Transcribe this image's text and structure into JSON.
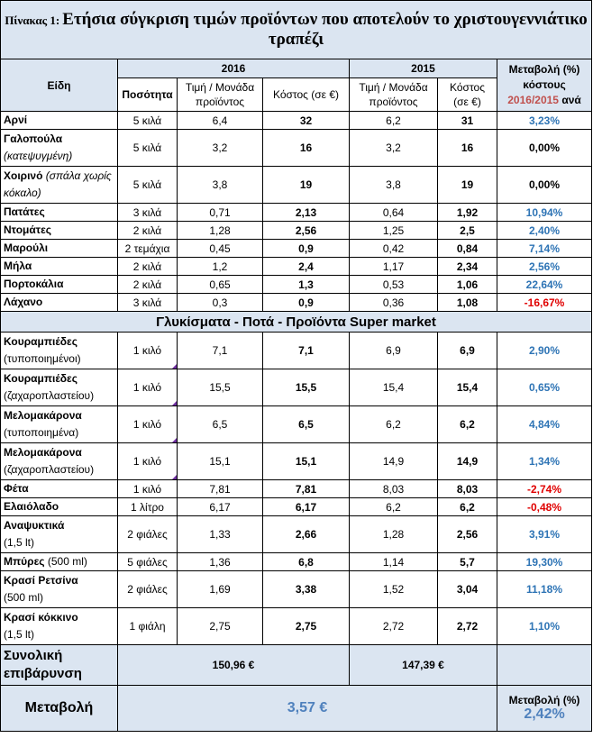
{
  "title": {
    "prefix": "Πίνακας 1:",
    "main": "Ετήσια σύγκριση τιμών προϊόντων που αποτελούν το χριστουγεννιάτικο τραπέζι"
  },
  "headers": {
    "items": "Είδη",
    "year_2016": "2016",
    "year_2015": "2015",
    "change_line1": "Μεταβολή (%)",
    "change_line2": "κόστους",
    "change_line3_years": "2016/2015",
    "change_line3_suffix": "ανά",
    "quantity": "Ποσότητα",
    "unit_price": "Τιμή / Μονάδα προϊόντος",
    "cost": "Κόστος (σε €)",
    "unit_price_2015": "Τιμή / Μονάδα προϊόντος",
    "cost_2015": "Κόστος (σε €)"
  },
  "group1": [
    {
      "name": "Αρνί",
      "sub": "",
      "qty": "5 κιλά",
      "p16": "6,4",
      "c16": "32",
      "p15": "6,2",
      "c15": "31",
      "chg": "3,23%",
      "sign": "pos"
    },
    {
      "name": "Γαλοπούλα",
      "sub": "(κατεψυγμένη)",
      "qty": "5 κιλά",
      "p16": "3,2",
      "c16": "16",
      "p15": "3,2",
      "c15": "16",
      "chg": "0,00%",
      "sign": "zero"
    },
    {
      "name": "Χοιρινό",
      "sub": "(σπάλα χωρίς κόκαλο)",
      "qty": "5 κιλά",
      "p16": "3,8",
      "c16": "19",
      "p15": "3,8",
      "c15": "19",
      "chg": "0,00%",
      "sign": "zero"
    },
    {
      "name": "Πατάτες",
      "sub": "",
      "qty": "3 κιλά",
      "p16": "0,71",
      "c16": "2,13",
      "p15": "0,64",
      "c15": "1,92",
      "chg": "10,94%",
      "sign": "pos"
    },
    {
      "name": "Ντομάτες",
      "sub": "",
      "qty": "2 κιλά",
      "p16": "1,28",
      "c16": "2,56",
      "p15": "1,25",
      "c15": "2,5",
      "chg": "2,40%",
      "sign": "pos"
    },
    {
      "name": "Μαρούλι",
      "sub": "",
      "qty": "2 τεμάχια",
      "p16": "0,45",
      "c16": "0,9",
      "p15": "0,42",
      "c15": "0,84",
      "chg": "7,14%",
      "sign": "pos"
    },
    {
      "name": "Μήλα",
      "sub": "",
      "qty": "2 κιλά",
      "p16": "1,2",
      "c16": "2,4",
      "p15": "1,17",
      "c15": "2,34",
      "chg": "2,56%",
      "sign": "pos"
    },
    {
      "name": "Πορτοκάλια",
      "sub": "",
      "qty": "2 κιλά",
      "p16": "0,65",
      "c16": "1,3",
      "p15": "0,53",
      "c15": "1,06",
      "chg": "22,64%",
      "sign": "pos"
    },
    {
      "name": "Λάχανο",
      "sub": "",
      "qty": "3 κιλά",
      "p16": "0,3",
      "c16": "0,9",
      "p15": "0,36",
      "c15": "1,08",
      "chg": "-16,67%",
      "sign": "neg"
    }
  ],
  "section2_title": "Γλυκίσματα - Ποτά - Προϊόντα Super market",
  "group2": [
    {
      "name": "Κουραμπιέδες",
      "note": "(τυποποιημένοι)",
      "qty": "1 κιλό",
      "p16": "7,1",
      "c16": "7,1",
      "p15": "6,9",
      "c15": "6,9",
      "chg": "2,90%",
      "sign": "pos",
      "tall": true
    },
    {
      "name": "Κουραμπιέδες",
      "note": "(ζαχαροπλαστείου)",
      "qty": "1 κιλό",
      "p16": "15,5",
      "c16": "15,5",
      "p15": "15,4",
      "c15": "15,4",
      "chg": "0,65%",
      "sign": "pos",
      "tall": true
    },
    {
      "name": "Μελομακάρονα",
      "note": "(τυποποιημένα)",
      "qty": "1 κιλό",
      "p16": "6,5",
      "c16": "6,5",
      "p15": "6,2",
      "c15": "6,2",
      "chg": "4,84%",
      "sign": "pos",
      "tall": true
    },
    {
      "name": "Μελομακάρονα",
      "note": "(ζαχαροπλαστείου)",
      "qty": "1 κιλό",
      "p16": "15,1",
      "c16": "15,1",
      "p15": "14,9",
      "c15": "14,9",
      "chg": "1,34%",
      "sign": "pos",
      "tall": true
    },
    {
      "name": "Φέτα",
      "note": "",
      "qty": "1 κιλό",
      "p16": "7,81",
      "c16": "7,81",
      "p15": "8,03",
      "c15": "8,03",
      "chg": "-2,74%",
      "sign": "neg",
      "tall": false
    },
    {
      "name": "Ελαιόλαδο",
      "note": "",
      "qty": "1 λίτρο",
      "p16": "6,17",
      "c16": "6,17",
      "p15": "6,2",
      "c15": "6,2",
      "chg": "-0,48%",
      "sign": "neg",
      "tall": false
    },
    {
      "name": "Αναψυκτικά",
      "note": "(1,5 lt)",
      "qty": "2 φιάλες",
      "p16": "1,33",
      "c16": "2,66",
      "p15": "1,28",
      "c15": "2,56",
      "chg": "3,91%",
      "sign": "pos",
      "tall": true
    },
    {
      "name": "Μπύρες",
      "note": "(500 ml)",
      "qty": "5 φιάλες",
      "p16": "1,36",
      "c16": "6,8",
      "p15": "1,14",
      "c15": "5,7",
      "chg": "19,30%",
      "sign": "pos",
      "tall": false,
      "inline": true
    },
    {
      "name": "Κρασί Ρετσίνα",
      "note": "(500 ml)",
      "qty": "2 φιάλες",
      "p16": "1,69",
      "c16": "3,38",
      "p15": "1,52",
      "c15": "3,04",
      "chg": "11,18%",
      "sign": "pos",
      "tall": true
    },
    {
      "name": "Κρασί κόκκινο",
      "note": "(1,5 lt)",
      "qty": "1 φιάλη",
      "p16": "2,75",
      "c16": "2,75",
      "p15": "2,72",
      "c15": "2,72",
      "chg": "1,10%",
      "sign": "pos",
      "tall": true
    }
  ],
  "total": {
    "label": "Συνολική επιβάρυνση",
    "v2016": "150,96 €",
    "v2015": "147,39 €"
  },
  "change": {
    "label": "Μεταβολή",
    "value": "3,57 €",
    "pct_label": "Μεταβολή (%)",
    "pct_value": "2,42%"
  }
}
